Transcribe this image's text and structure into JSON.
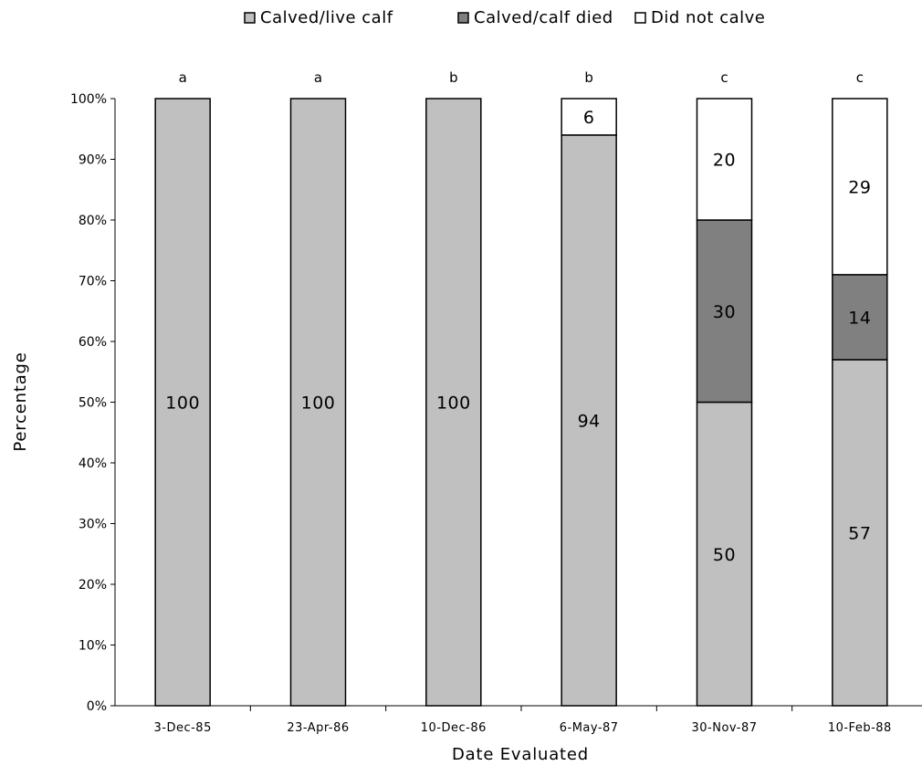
{
  "chart_data": {
    "type": "bar",
    "stacked": true,
    "categories": [
      "3-Dec-85",
      "23-Apr-86",
      "10-Dec-86",
      "6-May-87",
      "30-Nov-87",
      "10-Feb-88"
    ],
    "group_letters": [
      "a",
      "a",
      "b",
      "b",
      "c",
      "c"
    ],
    "series": [
      {
        "name": "Calved/live calf",
        "color": "#c0c0c0",
        "values": [
          100,
          100,
          100,
          94,
          50,
          57
        ]
      },
      {
        "name": "Calved/calf died",
        "color": "#808080",
        "values": [
          0,
          0,
          0,
          0,
          30,
          14
        ]
      },
      {
        "name": "Did not calve",
        "color": "#ffffff",
        "values": [
          0,
          0,
          0,
          6,
          20,
          29
        ]
      }
    ],
    "xlabel": "Date Evaluated",
    "ylabel": "Percentage",
    "ylim": [
      0,
      100
    ],
    "yticks": [
      "0%",
      "10%",
      "20%",
      "30%",
      "40%",
      "50%",
      "60%",
      "70%",
      "80%",
      "90%",
      "100%"
    ],
    "legend_position": "top",
    "grid": false
  }
}
